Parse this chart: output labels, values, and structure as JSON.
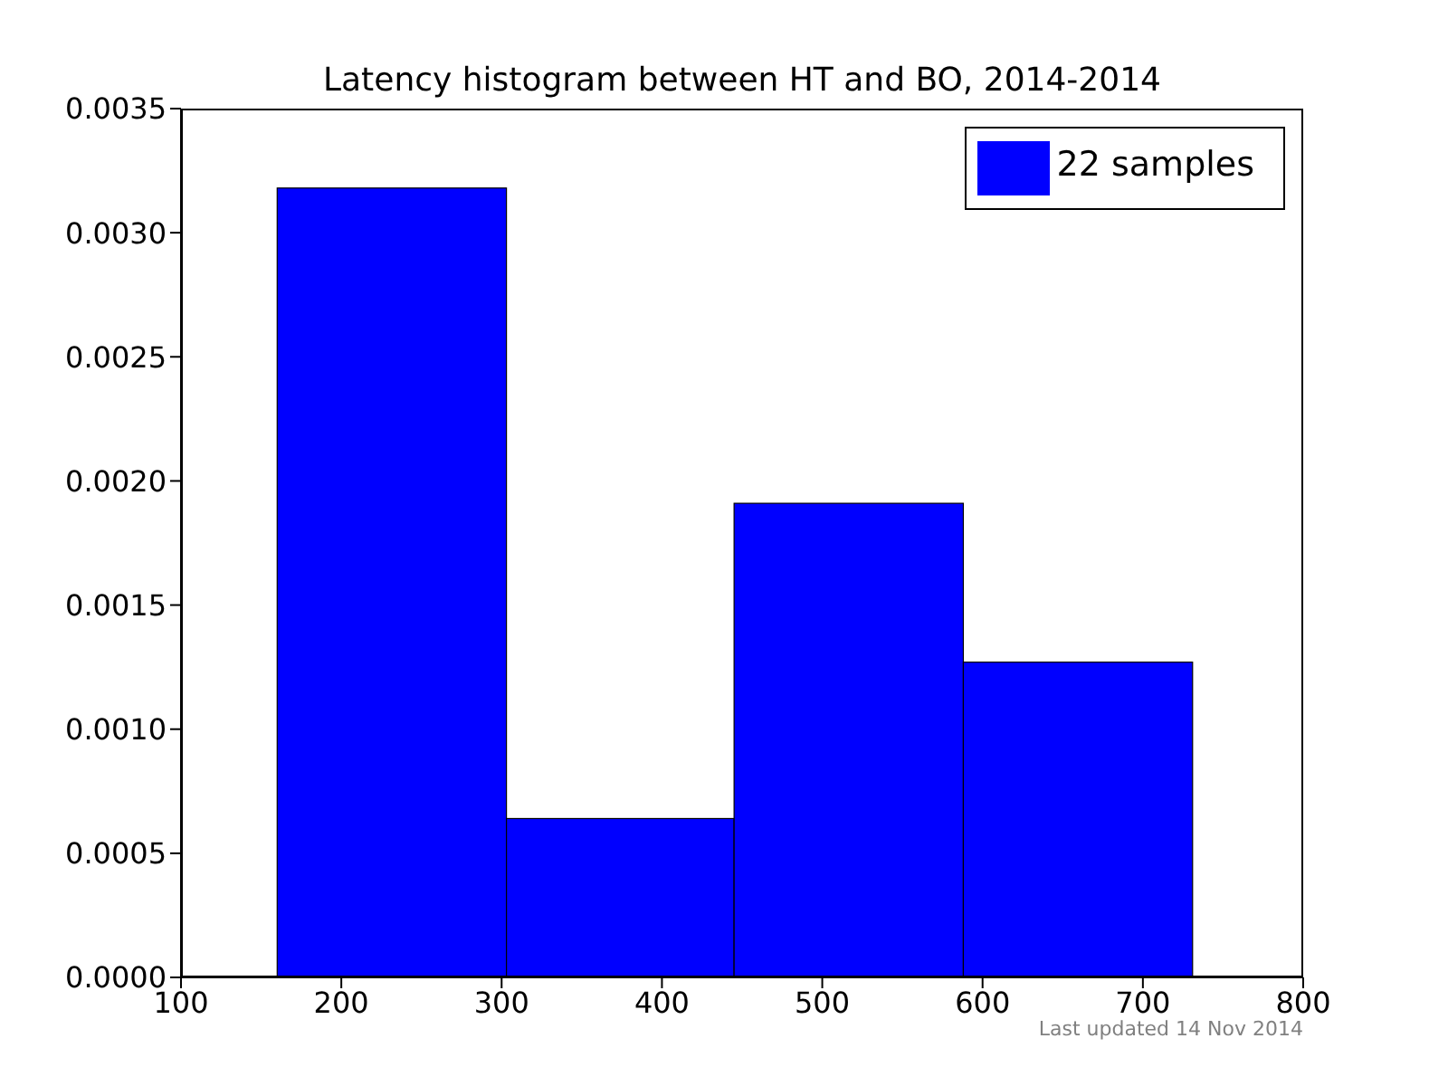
{
  "chart_data": {
    "type": "histogram",
    "title": "Latency histogram between HT and BO, 2014-2014",
    "bins": [
      160,
      303,
      445,
      588,
      731
    ],
    "series": [
      {
        "name": "22 samples",
        "color": "#0000ff",
        "values": [
          0.00318,
          0.00064,
          0.00191,
          0.00127
        ]
      }
    ],
    "xlim": [
      100,
      800
    ],
    "xticks": [
      100,
      200,
      300,
      400,
      500,
      600,
      700,
      800
    ],
    "ylim": [
      0,
      0.0035
    ],
    "yticks": [
      {
        "value": 0,
        "label": "0.0000"
      },
      {
        "value": 0.0005,
        "label": "0.0005"
      },
      {
        "value": 0.001,
        "label": "0.0010"
      },
      {
        "value": 0.0015,
        "label": "0.0015"
      },
      {
        "value": 0.002,
        "label": "0.0020"
      },
      {
        "value": 0.0025,
        "label": "0.0025"
      },
      {
        "value": 0.003,
        "label": "0.0030"
      },
      {
        "value": 0.0035,
        "label": "0.0035"
      }
    ],
    "legend": "top right",
    "annotations": [
      "Last updated 14 Nov 2014"
    ]
  }
}
